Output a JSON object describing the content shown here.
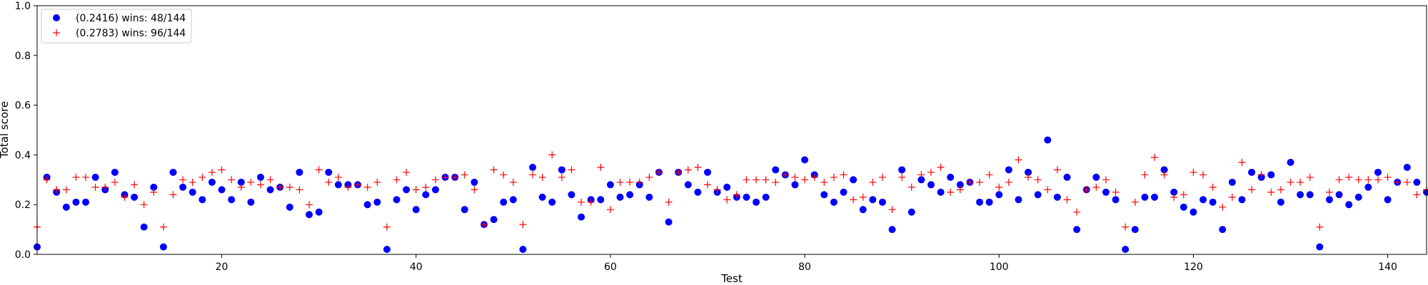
{
  "chart_data": {
    "type": "scatter",
    "title": "",
    "xlabel": "Test",
    "ylabel": "Total score",
    "xlim": [
      1,
      144
    ],
    "ylim": [
      0.0,
      1.0
    ],
    "xticks": [
      20,
      40,
      60,
      80,
      100,
      120,
      140
    ],
    "yticks": [
      "0.0",
      "0.2",
      "0.4",
      "0.6",
      "0.8",
      "1.0"
    ],
    "grid": false,
    "legend_position": "top-left",
    "series": [
      {
        "name": "(0.2416) wins: 48/144",
        "marker": "circle",
        "color": "#0000ff",
        "x": [
          1,
          2,
          3,
          4,
          5,
          6,
          7,
          8,
          9,
          10,
          11,
          12,
          13,
          14,
          15,
          16,
          17,
          18,
          19,
          20,
          21,
          22,
          23,
          24,
          25,
          26,
          27,
          28,
          29,
          30,
          31,
          32,
          33,
          34,
          35,
          36,
          37,
          38,
          39,
          40,
          41,
          42,
          43,
          44,
          45,
          46,
          47,
          48,
          49,
          50,
          51,
          52,
          53,
          54,
          55,
          56,
          57,
          58,
          59,
          60,
          61,
          62,
          63,
          64,
          65,
          66,
          67,
          68,
          69,
          70,
          71,
          72,
          73,
          74,
          75,
          76,
          77,
          78,
          79,
          80,
          81,
          82,
          83,
          84,
          85,
          86,
          87,
          88,
          89,
          90,
          91,
          92,
          93,
          94,
          95,
          96,
          97,
          98,
          99,
          100,
          101,
          102,
          103,
          104,
          105,
          106,
          107,
          108,
          109,
          110,
          111,
          112,
          113,
          114,
          115,
          116,
          117,
          118,
          119,
          120,
          121,
          122,
          123,
          124,
          125,
          126,
          127,
          128,
          129,
          130,
          131,
          132,
          133,
          134,
          135,
          136,
          137,
          138,
          139,
          140,
          141,
          142,
          143,
          144
        ],
        "y": [
          0.03,
          0.31,
          0.25,
          0.19,
          0.21,
          0.21,
          0.31,
          0.26,
          0.33,
          0.24,
          0.23,
          0.11,
          0.27,
          0.03,
          0.33,
          0.27,
          0.25,
          0.22,
          0.29,
          0.26,
          0.22,
          0.29,
          0.21,
          0.31,
          0.26,
          0.27,
          0.19,
          0.33,
          0.16,
          0.17,
          0.33,
          0.28,
          0.28,
          0.28,
          0.2,
          0.21,
          0.02,
          0.22,
          0.26,
          0.18,
          0.24,
          0.26,
          0.31,
          0.31,
          0.18,
          0.29,
          0.12,
          0.14,
          0.21,
          0.22,
          0.02,
          0.35,
          0.23,
          0.21,
          0.34,
          0.24,
          0.15,
          0.22,
          0.22,
          0.28,
          0.23,
          0.24,
          0.28,
          0.23,
          0.33,
          0.13,
          0.33,
          0.28,
          0.25,
          0.33,
          0.25,
          0.27,
          0.23,
          0.23,
          0.21,
          0.23,
          0.34,
          0.32,
          0.28,
          0.38,
          0.32,
          0.24,
          0.21,
          0.25,
          0.3,
          0.18,
          0.22,
          0.21,
          0.1,
          0.34,
          0.17,
          0.3,
          0.28,
          0.25,
          0.31,
          0.28,
          0.29,
          0.21,
          0.21,
          0.24,
          0.34,
          0.22,
          0.33,
          0.24,
          0.46,
          0.23,
          0.31,
          0.1,
          0.26,
          0.31,
          0.25,
          0.22,
          0.02,
          0.1,
          0.23,
          0.23,
          0.34,
          0.25,
          0.19,
          0.17,
          0.22,
          0.21,
          0.1,
          0.29,
          0.22,
          0.33,
          0.31,
          0.32,
          0.21,
          0.37,
          0.24,
          0.24,
          0.03,
          0.22,
          0.24,
          0.2,
          0.23,
          0.27,
          0.33,
          0.22,
          0.29,
          0.35,
          0.29,
          0.25
        ]
      },
      {
        "name": "(0.2783) wins: 96/144",
        "marker": "plus",
        "color": "#ff0000",
        "x": [
          1,
          2,
          3,
          4,
          5,
          6,
          7,
          8,
          9,
          10,
          11,
          12,
          13,
          14,
          15,
          16,
          17,
          18,
          19,
          20,
          21,
          22,
          23,
          24,
          25,
          26,
          27,
          28,
          29,
          30,
          31,
          32,
          33,
          34,
          35,
          36,
          37,
          38,
          39,
          40,
          41,
          42,
          43,
          44,
          45,
          46,
          47,
          48,
          49,
          50,
          51,
          52,
          53,
          54,
          55,
          56,
          57,
          58,
          59,
          60,
          61,
          62,
          63,
          64,
          65,
          66,
          67,
          68,
          69,
          70,
          71,
          72,
          73,
          74,
          75,
          76,
          77,
          78,
          79,
          80,
          81,
          82,
          83,
          84,
          85,
          86,
          87,
          88,
          89,
          90,
          91,
          92,
          93,
          94,
          95,
          96,
          97,
          98,
          99,
          100,
          101,
          102,
          103,
          104,
          105,
          106,
          107,
          108,
          109,
          110,
          111,
          112,
          113,
          114,
          115,
          116,
          117,
          118,
          119,
          120,
          121,
          122,
          123,
          124,
          125,
          126,
          127,
          128,
          129,
          130,
          131,
          132,
          133,
          134,
          135,
          136,
          137,
          138,
          139,
          140,
          141,
          142,
          143,
          144
        ],
        "y": [
          0.11,
          0.3,
          0.26,
          0.26,
          0.31,
          0.31,
          0.27,
          0.27,
          0.29,
          0.23,
          0.28,
          0.2,
          0.25,
          0.11,
          0.24,
          0.3,
          0.29,
          0.31,
          0.33,
          0.34,
          0.3,
          0.27,
          0.29,
          0.28,
          0.3,
          0.27,
          0.27,
          0.26,
          0.2,
          0.34,
          0.29,
          0.31,
          0.27,
          0.28,
          0.27,
          0.29,
          0.11,
          0.3,
          0.33,
          0.26,
          0.27,
          0.3,
          0.31,
          0.31,
          0.32,
          0.26,
          0.12,
          0.34,
          0.32,
          0.29,
          0.12,
          0.32,
          0.31,
          0.4,
          0.31,
          0.34,
          0.21,
          0.21,
          0.35,
          0.18,
          0.29,
          0.29,
          0.29,
          0.31,
          0.33,
          0.21,
          0.33,
          0.34,
          0.35,
          0.28,
          0.26,
          0.22,
          0.24,
          0.3,
          0.3,
          0.3,
          0.29,
          0.32,
          0.31,
          0.3,
          0.31,
          0.29,
          0.31,
          0.32,
          0.22,
          0.23,
          0.29,
          0.31,
          0.18,
          0.31,
          0.27,
          0.32,
          0.33,
          0.35,
          0.25,
          0.26,
          0.29,
          0.29,
          0.32,
          0.27,
          0.29,
          0.38,
          0.31,
          0.3,
          0.26,
          0.34,
          0.22,
          0.17,
          0.26,
          0.27,
          0.3,
          0.25,
          0.11,
          0.21,
          0.32,
          0.39,
          0.32,
          0.23,
          0.24,
          0.33,
          0.32,
          0.27,
          0.19,
          0.23,
          0.37,
          0.26,
          0.32,
          0.25,
          0.26,
          0.29,
          0.29,
          0.31,
          0.11,
          0.25,
          0.3,
          0.31,
          0.3,
          0.3,
          0.3,
          0.31,
          0.29,
          0.29,
          0.24,
          0.26
        ]
      }
    ]
  }
}
